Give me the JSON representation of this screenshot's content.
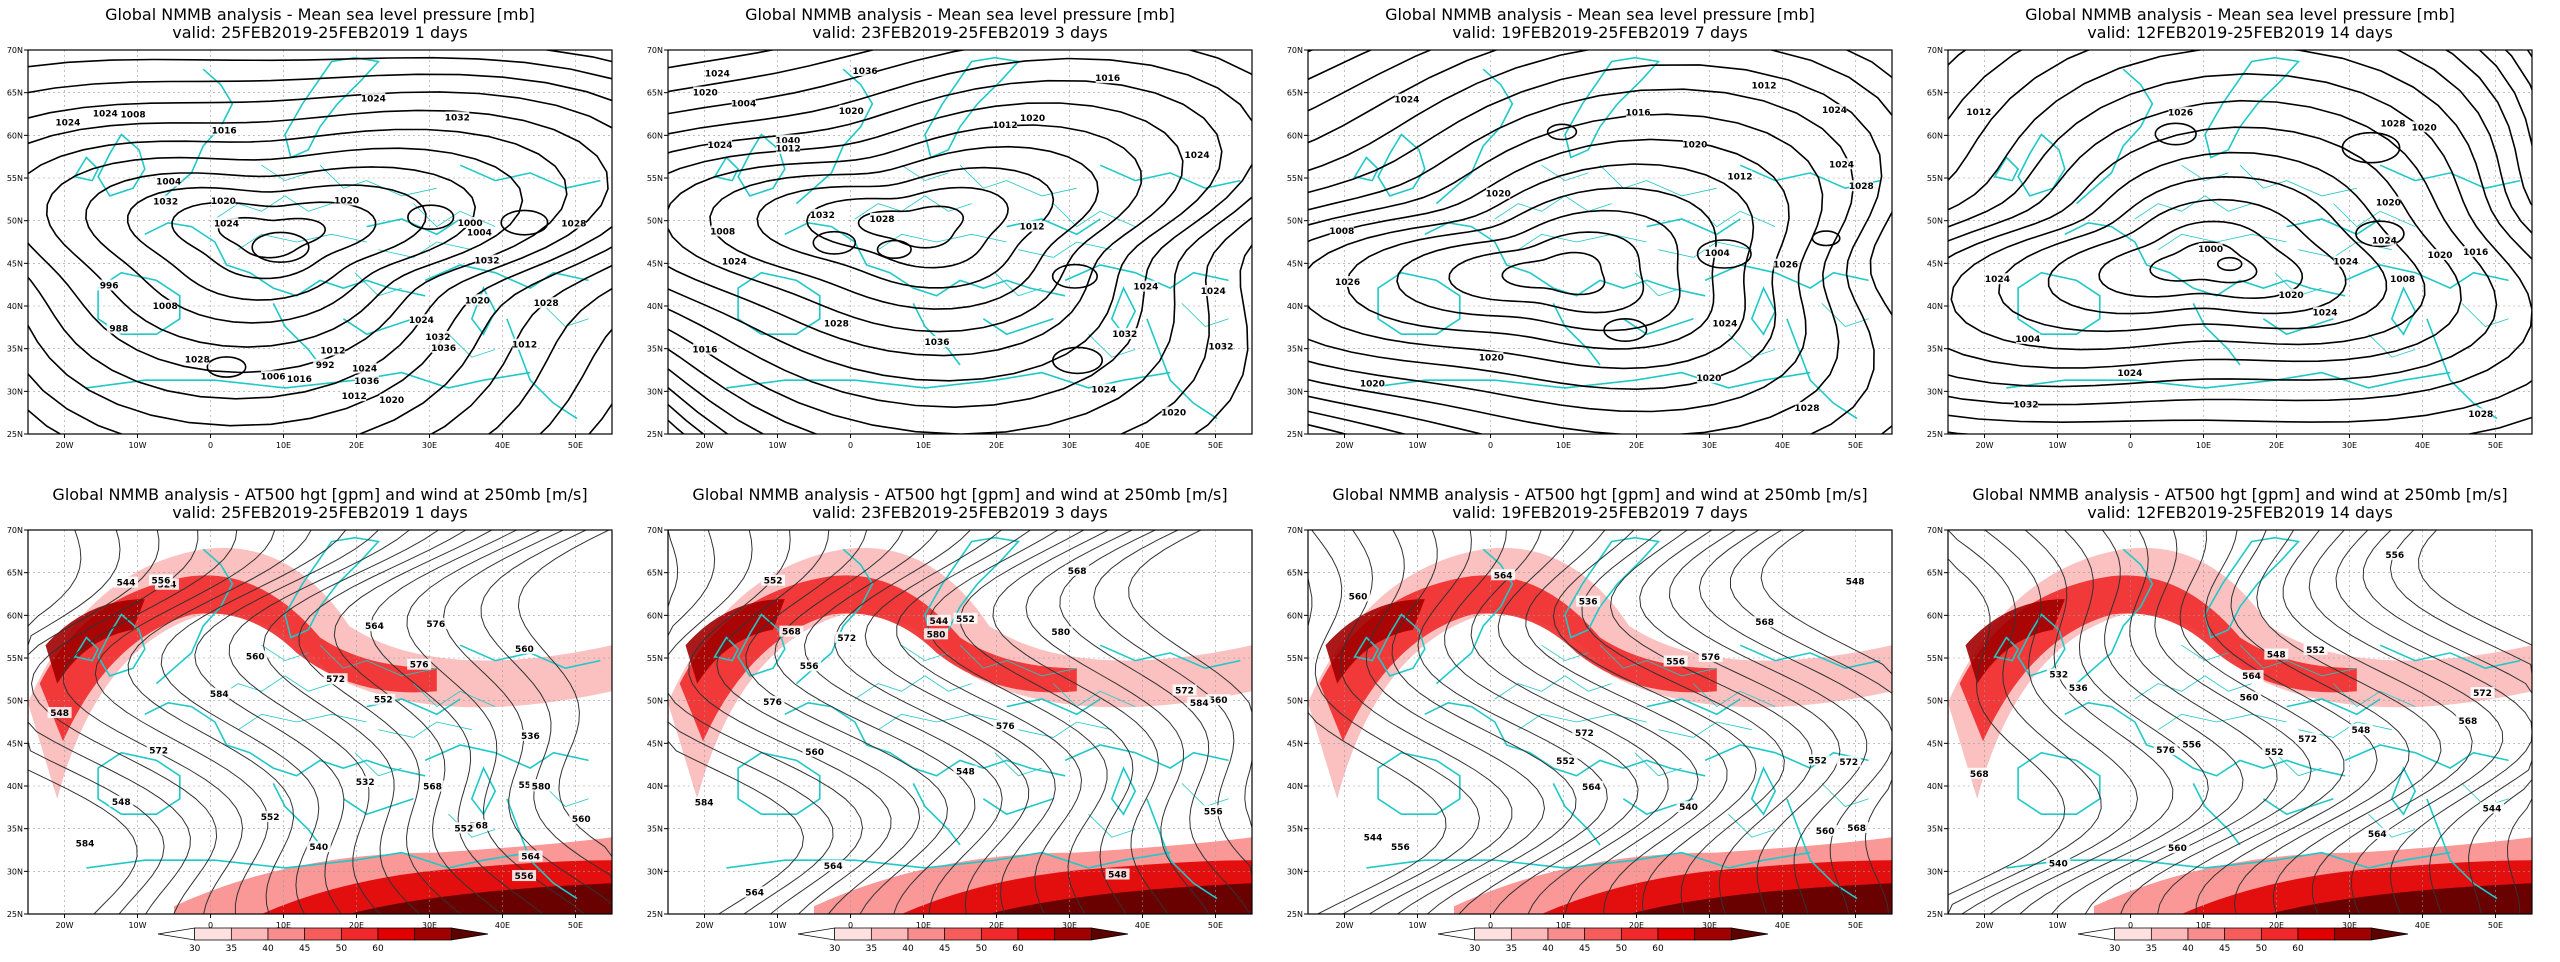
{
  "panels": [
    {
      "title": "Global NMMB analysis - Mean sea level pressure [mb]",
      "valid": "valid: 25FEB2019-25FEB2019   1 days",
      "type": "mslp",
      "contour_labels": [
        "1006",
        "1012",
        "1020",
        "1024",
        "1028",
        "988",
        "992",
        "996",
        "1000",
        "1004",
        "1008",
        "1012",
        "1016",
        "1020",
        "1032",
        "1036",
        "1032",
        "1036",
        "1028",
        "1004",
        "1008",
        "1032",
        "1032",
        "1024",
        "1024",
        "1028",
        "1024",
        "1012",
        "1016",
        "1020",
        "1024",
        "1024",
        "1020"
      ]
    },
    {
      "title": "Global NMMB analysis - Mean sea level pressure [mb]",
      "valid": "valid: 23FEB2019-25FEB2019   3 days",
      "type": "mslp",
      "contour_labels": [
        "1004",
        "1008",
        "1012",
        "1016",
        "1020",
        "1024",
        "1028",
        "1032",
        "1036",
        "1040",
        "1036",
        "1032",
        "1024",
        "1028",
        "1024",
        "1020",
        "1020",
        "1024",
        "1012",
        "1016",
        "1020",
        "1024",
        "1024",
        "1012",
        "1032",
        "1024"
      ]
    },
    {
      "title": "Global NMMB analysis - Mean sea level pressure [mb]",
      "valid": "valid: 19FEB2019-25FEB2019   7 days",
      "type": "mslp",
      "contour_labels": [
        "1012",
        "1016",
        "1004",
        "1008",
        "1020",
        "1024",
        "1026",
        "1028",
        "1026",
        "1024",
        "1020",
        "1024",
        "1020",
        "1020",
        "1024",
        "1028",
        "1020",
        "1012"
      ]
    },
    {
      "title": "Global NMMB analysis - Mean sea level pressure [mb]",
      "valid": "valid: 12FEB2019-25FEB2019   14 days",
      "type": "mslp",
      "contour_labels": [
        "1000",
        "1004",
        "1008",
        "1012",
        "1016",
        "1020",
        "1024",
        "1028",
        "1026",
        "1032",
        "1028",
        "1024",
        "1024",
        "1020",
        "1024",
        "1024",
        "1020",
        "1020"
      ]
    },
    {
      "title": "Global NMMB analysis - AT500 hgt [gpm] and wind at 250mb [m/s]",
      "valid": "valid: 25FEB2019-25FEB2019   1 days",
      "type": "z500",
      "contour_labels": [
        "548",
        "552",
        "556",
        "560",
        "564",
        "568",
        "572",
        "576",
        "580",
        "584",
        "524",
        "532",
        "536",
        "540",
        "544",
        "552",
        "556",
        "560",
        "564",
        "568",
        "572",
        "576",
        "584",
        "560",
        "556",
        "548",
        "552"
      ]
    },
    {
      "title": "Global NMMB analysis - AT500 hgt [gpm] and wind at 250mb [m/s]",
      "valid": "valid: 23FEB2019-25FEB2019   3 days",
      "type": "z500",
      "contour_labels": [
        "548",
        "552",
        "556",
        "560",
        "564",
        "568",
        "572",
        "576",
        "580",
        "584",
        "544",
        "548",
        "552",
        "556",
        "560",
        "564",
        "568",
        "572",
        "576",
        "580",
        "584"
      ]
    },
    {
      "title": "Global NMMB analysis - AT500 hgt [gpm] and wind at 250mb [m/s]",
      "valid": "valid: 19FEB2019-25FEB2019   7 days",
      "type": "z500",
      "contour_labels": [
        "536",
        "540",
        "544",
        "548",
        "552",
        "556",
        "560",
        "564",
        "568",
        "572",
        "576",
        "552",
        "556",
        "560",
        "564",
        "568",
        "572"
      ]
    },
    {
      "title": "Global NMMB analysis - AT500 hgt [gpm] and wind at 250mb [m/s]",
      "valid": "valid: 12FEB2019-25FEB2019   14 days",
      "type": "z500",
      "contour_labels": [
        "532",
        "536",
        "540",
        "544",
        "548",
        "552",
        "556",
        "560",
        "564",
        "568",
        "572",
        "576",
        "548",
        "552",
        "556",
        "560",
        "564",
        "568",
        "572"
      ]
    }
  ],
  "map": {
    "lon_ticks": [
      "20W",
      "10W",
      "0",
      "10E",
      "20E",
      "30E",
      "40E",
      "50E"
    ],
    "lat_ticks": [
      "70N",
      "65N",
      "60N",
      "55N",
      "50N",
      "45N",
      "40N",
      "35N",
      "30N",
      "25N"
    ],
    "coast_color": "#20c8c8"
  },
  "colorbar": {
    "ticks": [
      "30",
      "35",
      "40",
      "45",
      "50",
      "60"
    ],
    "colors": [
      "#ffffff",
      "#fde1e1",
      "#fbb9b9",
      "#f98c8c",
      "#f65c5c",
      "#f02a2a",
      "#e00000",
      "#a10000",
      "#5c0000"
    ]
  }
}
